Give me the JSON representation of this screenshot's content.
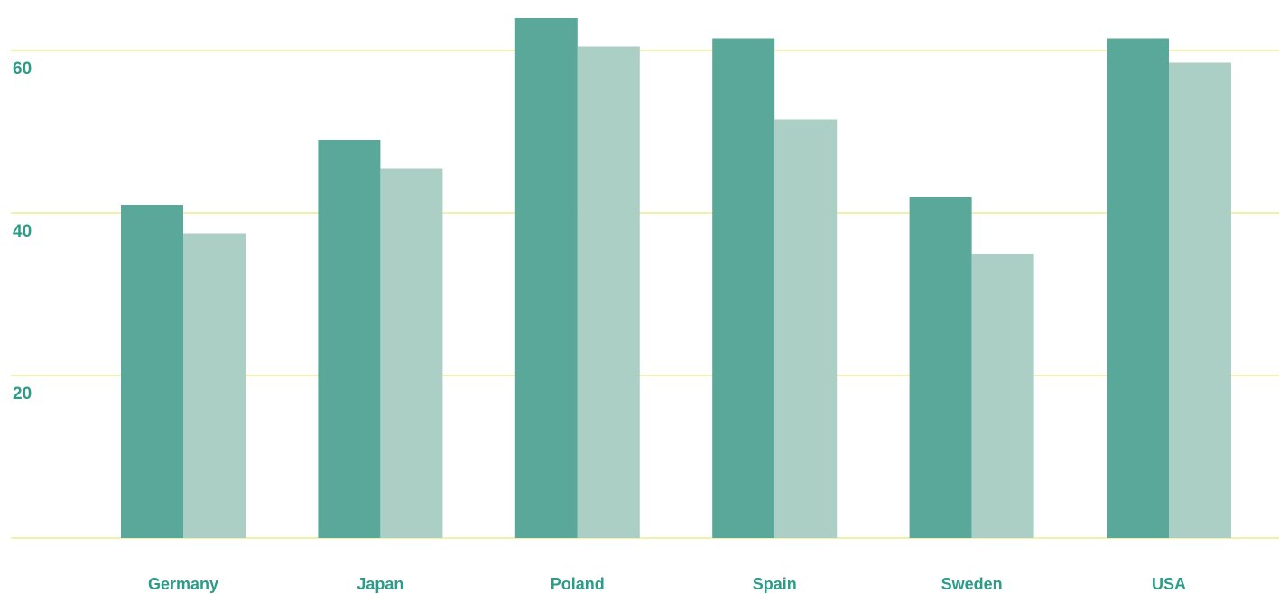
{
  "chart_data": {
    "type": "bar",
    "categories": [
      "Germany",
      "Japan",
      "Poland",
      "Spain",
      "Sweden",
      "USA"
    ],
    "series": [
      {
        "values": [
          41,
          49,
          64,
          61.5,
          42,
          61.5
        ],
        "color": "#5aa899"
      },
      {
        "values": [
          37.5,
          45.5,
          60.5,
          51.5,
          35,
          58.5
        ],
        "color": "#abcec5"
      }
    ],
    "yticks": [
      20,
      40,
      60
    ],
    "ylim": [
      0,
      65
    ],
    "grid": true,
    "grid_color": "#ece57a",
    "label_color": "#2b9c88",
    "title": "",
    "xlabel": "",
    "ylabel": ""
  }
}
